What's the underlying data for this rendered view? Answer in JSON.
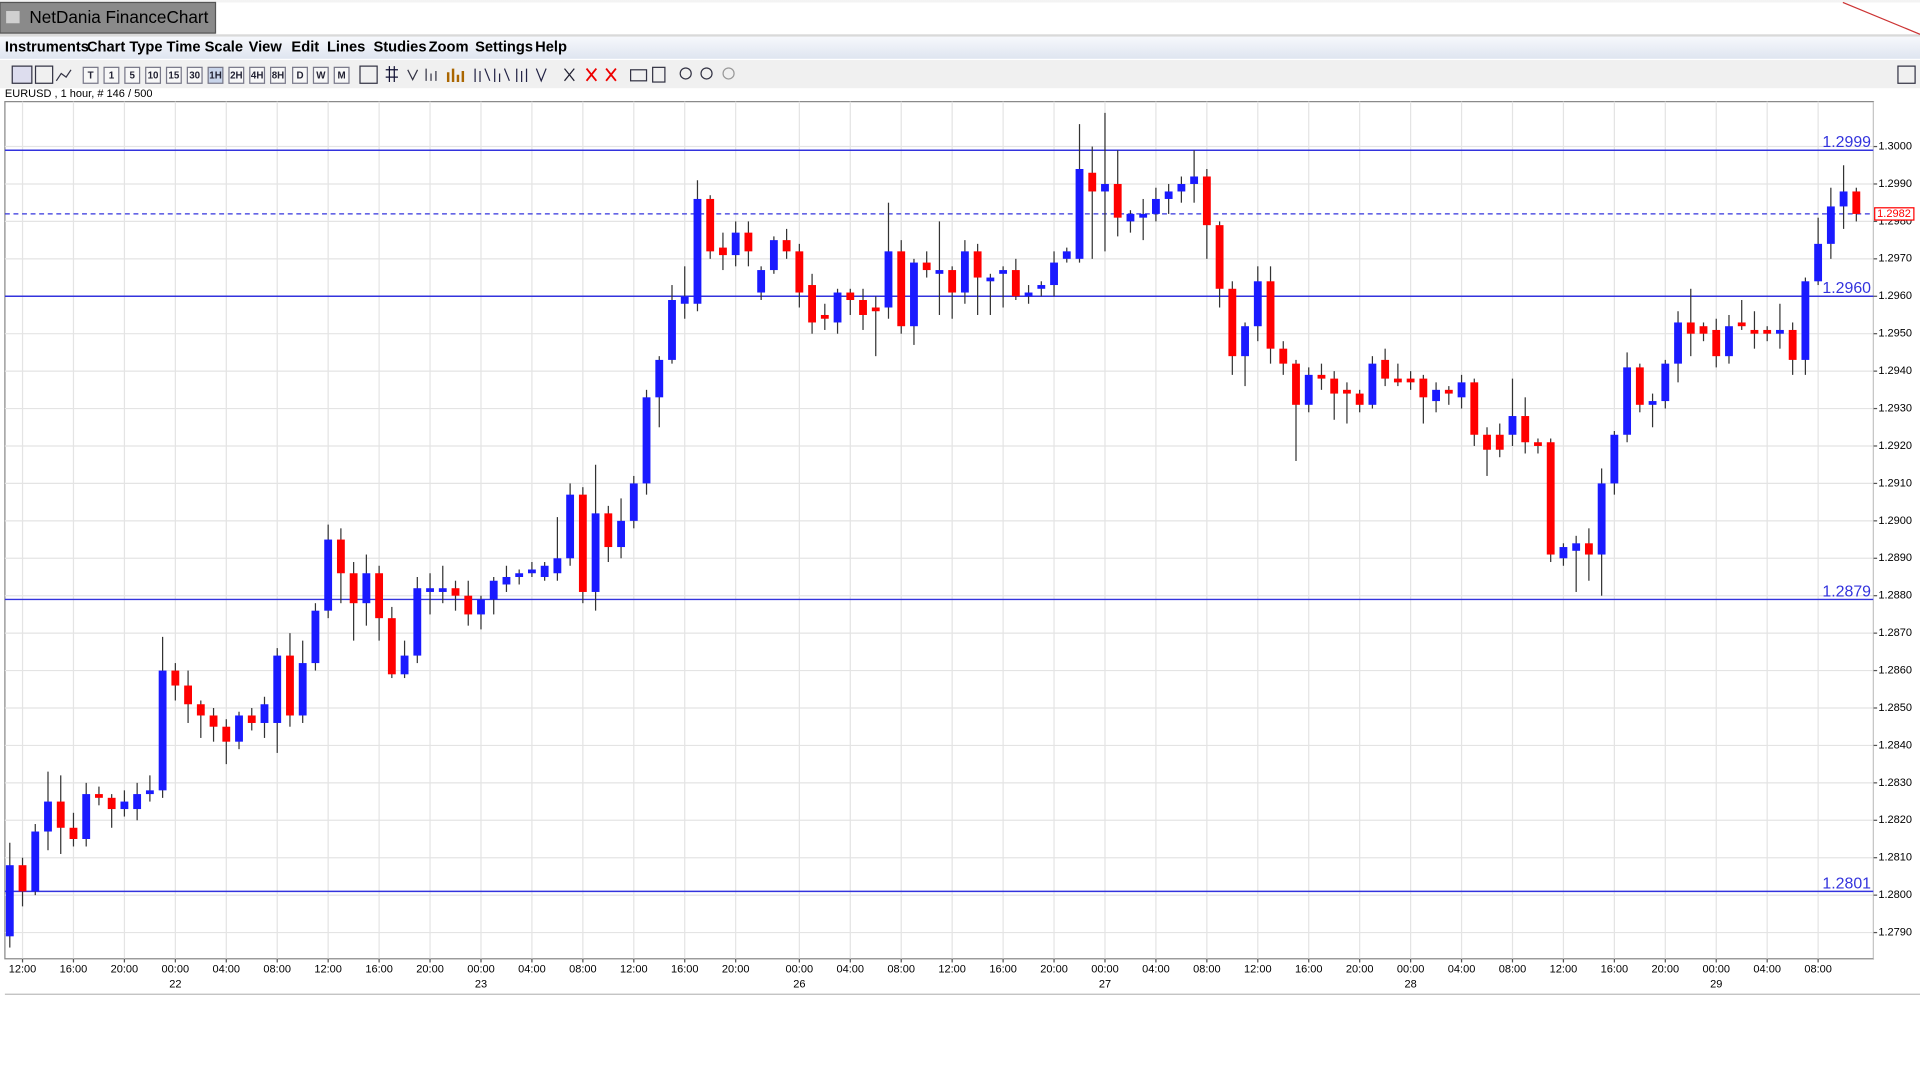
{
  "window": {
    "title": "NetDania FinanceChart"
  },
  "menu": [
    "Instruments",
    "Chart Type",
    "Time Scale",
    "View",
    "Edit",
    "Lines",
    "Studies",
    "Zoom",
    "Settings",
    "Help"
  ],
  "toolbar": [
    "T",
    "1",
    "5",
    "10",
    "15",
    "30",
    "1H",
    "2H",
    "4H",
    "8H",
    "D",
    "W",
    "M"
  ],
  "chart_data": {
    "type": "candlestick",
    "info": "EURUSD , 1 hour, # 146 / 500",
    "up_color": "#1a1aff",
    "down_color": "#ff0000",
    "level_color": "#3333dd",
    "grid": true,
    "categories": [
      null,
      "12:00",
      null,
      null,
      null,
      "16:00",
      null,
      null,
      null,
      "20:00",
      null,
      null,
      null,
      "00:00",
      null,
      null,
      null,
      "04:00",
      null,
      null,
      null,
      "08:00",
      null,
      null,
      null,
      "12:00",
      null,
      null,
      null,
      "16:00",
      null,
      null,
      null,
      "20:00",
      null,
      null,
      null,
      "00:00",
      null,
      null,
      null,
      "04:00",
      null,
      null,
      null,
      "08:00",
      null,
      null,
      null,
      "12:00",
      null,
      null,
      null,
      "16:00",
      null,
      null,
      null,
      "20:00",
      null,
      null,
      null,
      null,
      "00:00",
      null,
      null,
      null,
      "04:00",
      null,
      null,
      null,
      "08:00",
      null,
      null,
      null,
      "12:00",
      null,
      null,
      null,
      "16:00",
      null,
      null,
      null,
      "20:00",
      null,
      null,
      null,
      "00:00",
      null,
      null,
      null,
      "04:00",
      null,
      null,
      null,
      "08:00",
      null,
      null,
      null,
      "12:00",
      null,
      null,
      null,
      "16:00",
      null,
      null,
      null,
      "20:00",
      null,
      null,
      null,
      "00:00",
      null,
      null,
      null,
      "04:00",
      null,
      null,
      null,
      "08:00",
      null,
      null,
      null,
      "12:00",
      null,
      null,
      null,
      "16:00",
      null,
      null,
      null,
      "20:00",
      null,
      null,
      null,
      "00:00",
      null,
      null,
      null,
      "04:00",
      null,
      null,
      null,
      "08:00",
      null,
      null,
      null
    ],
    "dates": [
      null,
      null,
      null,
      null,
      null,
      null,
      null,
      null,
      null,
      null,
      null,
      null,
      null,
      "22",
      null,
      null,
      null,
      null,
      null,
      null,
      null,
      null,
      null,
      null,
      null,
      null,
      null,
      null,
      null,
      null,
      null,
      null,
      null,
      null,
      null,
      null,
      null,
      "23",
      null,
      null,
      null,
      null,
      null,
      null,
      null,
      null,
      null,
      null,
      null,
      null,
      null,
      null,
      null,
      null,
      null,
      null,
      null,
      null,
      null,
      null,
      null,
      null,
      "26",
      null,
      null,
      null,
      null,
      null,
      null,
      null,
      null,
      null,
      null,
      null,
      null,
      null,
      null,
      null,
      null,
      null,
      null,
      null,
      null,
      null,
      null,
      null,
      "27",
      null,
      null,
      null,
      null,
      null,
      null,
      null,
      null,
      null,
      null,
      null,
      null,
      null,
      null,
      null,
      null,
      null,
      null,
      null,
      null,
      null,
      null,
      null,
      "28",
      null,
      null,
      null,
      null,
      null,
      null,
      null,
      null,
      null,
      null,
      null,
      null,
      null,
      null,
      null,
      null,
      null,
      null,
      null,
      null,
      null,
      null,
      null,
      "29",
      null,
      null,
      null,
      null,
      null,
      null,
      null,
      null,
      null,
      null,
      null
    ],
    "open": [
      1.2789,
      1.2808,
      1.2801,
      1.2817,
      1.2825,
      1.2818,
      1.2815,
      1.2827,
      1.2826,
      1.2823,
      1.2823,
      1.2827,
      1.2828,
      1.286,
      1.2856,
      1.2851,
      1.2848,
      1.2845,
      1.2841,
      1.2848,
      1.2846,
      1.2846,
      1.2864,
      1.2848,
      1.2862,
      1.2876,
      1.2895,
      1.2886,
      1.2878,
      1.2886,
      1.2874,
      1.2859,
      1.2864,
      1.2881,
      1.2881,
      1.2882,
      1.288,
      1.2875,
      1.2879,
      1.2883,
      1.2885,
      1.2886,
      1.2885,
      1.2886,
      1.289,
      1.2907,
      1.2881,
      1.2902,
      1.2893,
      1.29,
      1.291,
      1.2933,
      1.2943,
      1.2958,
      1.2958,
      1.2986,
      1.2973,
      1.2971,
      1.2977,
      1.2961,
      1.2967,
      1.2975,
      1.2972,
      1.2963,
      1.2955,
      1.2953,
      1.2961,
      1.2959,
      1.2957,
      1.2957,
      1.2972,
      1.2952,
      1.2969,
      1.2966,
      1.2967,
      1.2961,
      1.2972,
      1.2964,
      1.2966,
      1.2967,
      1.296,
      1.2962,
      1.2963,
      1.297,
      1.297,
      1.2993,
      1.2988,
      1.299,
      1.298,
      1.2981,
      1.2982,
      1.2986,
      1.2988,
      1.299,
      1.2992,
      1.2979,
      1.2962,
      1.2944,
      1.2952,
      1.2964,
      1.2946,
      1.2942,
      1.2931,
      1.2939,
      1.2938,
      1.2935,
      1.2934,
      1.2931,
      1.2943,
      1.2938,
      1.2938,
      1.2938,
      1.2932,
      1.2935,
      1.2933,
      1.2937,
      1.2923,
      1.2923,
      1.2923,
      1.2928,
      1.2921,
      1.2921,
      1.289,
      1.2892,
      1.2894,
      1.2891,
      1.291,
      1.2923,
      1.2941,
      1.2931,
      1.2932,
      1.2942,
      1.2953,
      1.2952,
      1.2951,
      1.2944,
      1.2953,
      1.2951,
      1.2951,
      1.295,
      1.2951,
      1.2943,
      1.2964,
      1.2974,
      1.2984,
      1.2988
    ],
    "high": [
      1.2814,
      1.281,
      1.2819,
      1.2833,
      1.2832,
      1.2822,
      1.283,
      1.2829,
      1.2827,
      1.2828,
      1.283,
      1.2832,
      1.2869,
      1.2862,
      1.286,
      1.2852,
      1.285,
      1.2847,
      1.2849,
      1.285,
      1.2853,
      1.2866,
      1.287,
      1.2868,
      1.2878,
      1.2899,
      1.2898,
      1.2889,
      1.2891,
      1.2888,
      1.2877,
      1.2868,
      1.2885,
      1.2886,
      1.2888,
      1.2884,
      1.2884,
      1.288,
      1.2885,
      1.2888,
      1.2887,
      1.2889,
      1.2889,
      1.2901,
      1.291,
      1.2909,
      1.2915,
      1.2904,
      1.2906,
      1.2912,
      1.2935,
      1.2944,
      1.2963,
      1.2968,
      1.2991,
      1.2987,
      1.2977,
      1.298,
      1.298,
      1.2968,
      1.2976,
      1.2978,
      1.2974,
      1.2966,
      1.2958,
      1.2962,
      1.2962,
      1.2962,
      1.296,
      1.2985,
      1.2975,
      1.297,
      1.2972,
      1.298,
      1.2968,
      1.2975,
      1.2974,
      1.2966,
      1.2968,
      1.297,
      1.2963,
      1.2964,
      1.2972,
      1.2973,
      1.3006,
      1.3,
      1.3009,
      1.2999,
      1.2983,
      1.2986,
      1.2989,
      1.299,
      1.2992,
      1.2999,
      1.2994,
      1.298,
      1.2964,
      1.2953,
      1.2968,
      1.2968,
      1.2948,
      1.2943,
      1.2941,
      1.2942,
      1.294,
      1.2937,
      1.2935,
      1.2944,
      1.2946,
      1.2942,
      1.294,
      1.2939,
      1.2937,
      1.2936,
      1.2939,
      1.2938,
      1.2925,
      1.2926,
      1.2938,
      1.2933,
      1.2922,
      1.2922,
      1.2894,
      1.2896,
      1.2898,
      1.2914,
      1.2924,
      1.2945,
      1.2942,
      1.2934,
      1.2943,
      1.2956,
      1.2962,
      1.2953,
      1.2954,
      1.2955,
      1.2959,
      1.2956,
      1.2952,
      1.2958,
      1.2953,
      1.2965,
      1.2981,
      1.2989,
      1.2995,
      1.2989
    ],
    "low": [
      1.2786,
      1.2797,
      1.28,
      1.2812,
      1.2811,
      1.2813,
      1.2813,
      1.2824,
      1.2818,
      1.2821,
      1.282,
      1.2825,
      1.2826,
      1.2852,
      1.2846,
      1.2842,
      1.2841,
      1.2835,
      1.2839,
      1.2844,
      1.2842,
      1.2838,
      1.2845,
      1.2846,
      1.286,
      1.2874,
      1.2878,
      1.2868,
      1.2872,
      1.2868,
      1.2858,
      1.2858,
      1.2862,
      1.2875,
      1.2878,
      1.2876,
      1.2872,
      1.2871,
      1.2875,
      1.2881,
      1.2883,
      1.2885,
      1.2884,
      1.2884,
      1.2888,
      1.2878,
      1.2876,
      1.2889,
      1.289,
      1.2898,
      1.2907,
      1.2925,
      1.2942,
      1.2954,
      1.2956,
      1.297,
      1.2967,
      1.2968,
      1.2968,
      1.2959,
      1.2966,
      1.297,
      1.2957,
      1.295,
      1.2951,
      1.295,
      1.2955,
      1.2951,
      1.2944,
      1.2954,
      1.295,
      1.2947,
      1.2965,
      1.2955,
      1.2954,
      1.2958,
      1.2955,
      1.2955,
      1.2957,
      1.2959,
      1.2958,
      1.296,
      1.296,
      1.2969,
      1.2969,
      1.297,
      1.2972,
      1.2976,
      1.2977,
      1.2975,
      1.298,
      1.2982,
      1.2985,
      1.2985,
      1.297,
      1.2957,
      1.2939,
      1.2936,
      1.2948,
      1.2942,
      1.2939,
      1.2916,
      1.2929,
      1.2935,
      1.2927,
      1.2926,
      1.2929,
      1.293,
      1.2936,
      1.2936,
      1.2935,
      1.2926,
      1.2929,
      1.2931,
      1.293,
      1.292,
      1.2912,
      1.2917,
      1.292,
      1.2918,
      1.2918,
      1.2889,
      1.2888,
      1.2881,
      1.2884,
      1.288,
      1.2907,
      1.2921,
      1.2929,
      1.2925,
      1.293,
      1.2937,
      1.2944,
      1.2948,
      1.2941,
      1.2942,
      1.2951,
      1.2946,
      1.2948,
      1.2946,
      1.2939,
      1.2939,
      1.2963,
      1.297,
      1.2978,
      1.298
    ],
    "close": [
      1.2808,
      1.2801,
      1.2817,
      1.2825,
      1.2818,
      1.2815,
      1.2827,
      1.2826,
      1.2823,
      1.2825,
      1.2827,
      1.2828,
      1.286,
      1.2856,
      1.2851,
      1.2848,
      1.2845,
      1.2841,
      1.2848,
      1.2846,
      1.2851,
      1.2864,
      1.2848,
      1.2862,
      1.2876,
      1.2895,
      1.2886,
      1.2878,
      1.2886,
      1.2874,
      1.2859,
      1.2864,
      1.2882,
      1.2882,
      1.2882,
      1.288,
      1.2875,
      1.2879,
      1.2884,
      1.2885,
      1.2886,
      1.2887,
      1.2888,
      1.289,
      1.2907,
      1.2881,
      1.2902,
      1.2893,
      1.29,
      1.291,
      1.2933,
      1.2943,
      1.2959,
      1.296,
      1.2986,
      1.2972,
      1.2971,
      1.2977,
      1.2972,
      1.2967,
      1.2975,
      1.2972,
      1.2961,
      1.2953,
      1.2954,
      1.2961,
      1.2959,
      1.2955,
      1.2956,
      1.2972,
      1.2952,
      1.2969,
      1.2967,
      1.2967,
      1.2961,
      1.2972,
      1.2965,
      1.2965,
      1.2967,
      1.296,
      1.2961,
      1.2963,
      1.2969,
      1.2972,
      1.2994,
      1.2988,
      1.299,
      1.2981,
      1.2982,
      1.2982,
      1.2986,
      1.2988,
      1.299,
      1.2992,
      1.2979,
      1.2962,
      1.2944,
      1.2952,
      1.2964,
      1.2946,
      1.2942,
      1.2931,
      1.2939,
      1.2938,
      1.2934,
      1.2934,
      1.2931,
      1.2942,
      1.2938,
      1.2937,
      1.2937,
      1.2933,
      1.2935,
      1.2934,
      1.2937,
      1.2923,
      1.2919,
      1.2919,
      1.2928,
      1.2921,
      1.292,
      1.2891,
      1.2893,
      1.2894,
      1.2891,
      1.291,
      1.2923,
      1.2941,
      1.2931,
      1.2932,
      1.2942,
      1.2953,
      1.295,
      1.295,
      1.2944,
      1.2952,
      1.2952,
      1.295,
      1.295,
      1.2951,
      1.2943,
      1.2964,
      1.2974,
      1.2984,
      1.2988,
      1.2982
    ],
    "ylim": [
      1.2783,
      1.3012
    ],
    "yticks": [
      {
        "value": 1.279,
        "label": "1.2790"
      },
      {
        "value": 1.28,
        "label": "1.2800"
      },
      {
        "value": 1.281,
        "label": "1.2810"
      },
      {
        "value": 1.282,
        "label": "1.2820"
      },
      {
        "value": 1.283,
        "label": "1.2830"
      },
      {
        "value": 1.284,
        "label": "1.2840"
      },
      {
        "value": 1.285,
        "label": "1.2850"
      },
      {
        "value": 1.286,
        "label": "1.2860"
      },
      {
        "value": 1.287,
        "label": "1.2870"
      },
      {
        "value": 1.288,
        "label": "1.2880"
      },
      {
        "value": 1.289,
        "label": "1.2890"
      },
      {
        "value": 1.29,
        "label": "1.2900"
      },
      {
        "value": 1.291,
        "label": "1.2910"
      },
      {
        "value": 1.292,
        "label": "1.2920"
      },
      {
        "value": 1.293,
        "label": "1.2930"
      },
      {
        "value": 1.294,
        "label": "1.2940"
      },
      {
        "value": 1.295,
        "label": "1.2950"
      },
      {
        "value": 1.296,
        "label": "1.2960"
      },
      {
        "value": 1.297,
        "label": "1.2970"
      },
      {
        "value": 1.298,
        "label": "1.2980"
      },
      {
        "value": 1.299,
        "label": "1.2990"
      },
      {
        "value": 1.3,
        "label": "1.3000"
      }
    ],
    "levels": [
      1.2999,
      {
        "value": 1.296,
        "label": "1.2960"
      },
      1.2879,
      1.2801
    ],
    "last_price": 1.2982
  }
}
